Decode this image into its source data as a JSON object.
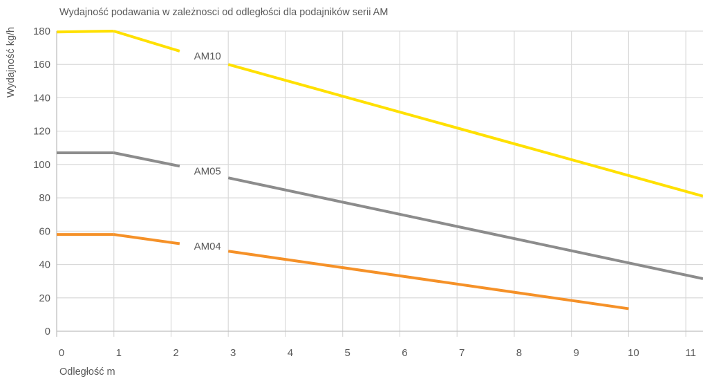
{
  "chart_data": {
    "type": "line",
    "title": "Wydajność podawania w zależnosci od odległości dla podajników serii AM",
    "xlabel": "Odległość m",
    "ylabel": "Wydajność kg/h",
    "xlim": [
      0,
      11.3
    ],
    "ylim": [
      0,
      180
    ],
    "x_ticks": [
      0,
      1,
      2,
      3,
      4,
      5,
      6,
      7,
      8,
      9,
      10,
      11
    ],
    "x_tick_labels": [
      "0",
      "1",
      "2",
      "3",
      "4",
      "5",
      "6",
      "7",
      "8",
      "9",
      "10",
      "11"
    ],
    "y_ticks": [
      0,
      20,
      40,
      60,
      80,
      100,
      120,
      140,
      160,
      180
    ],
    "y_tick_labels": [
      "0",
      "20",
      "40",
      "60",
      "80",
      "100",
      "120",
      "140",
      "160",
      "180"
    ],
    "grid": true,
    "legend": "none",
    "series": [
      {
        "name": "AM10",
        "color": "#FFE000",
        "label_at": [
          2.4,
          165
        ],
        "x": [
          0,
          1,
          2.15,
          3,
          11.3
        ],
        "y": [
          179.5,
          180,
          168,
          160,
          81
        ],
        "gaps": [
          [
            2.15,
            3
          ]
        ]
      },
      {
        "name": "AM05",
        "color": "#8C8C8C",
        "label_at": [
          2.4,
          96
        ],
        "x": [
          0,
          1,
          2.15,
          3,
          11.3
        ],
        "y": [
          107,
          107,
          99,
          92,
          31.5
        ],
        "gaps": [
          [
            2.15,
            3
          ]
        ]
      },
      {
        "name": "AM04",
        "color": "#F59128",
        "label_at": [
          2.4,
          51
        ],
        "x": [
          0,
          1,
          2.15,
          3,
          10
        ],
        "y": [
          58,
          58,
          52.5,
          48,
          13.5
        ],
        "gaps": [
          [
            2.15,
            3
          ]
        ]
      }
    ]
  }
}
